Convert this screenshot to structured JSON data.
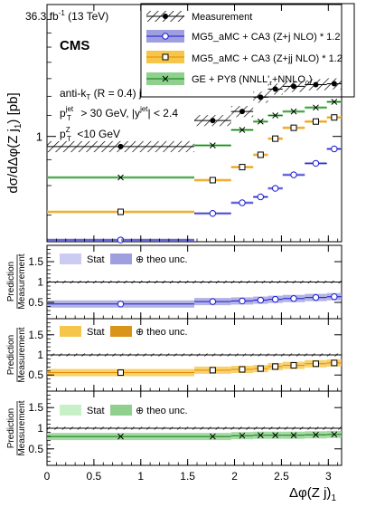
{
  "header": {
    "lumi": "36.3 fb",
    "lumi_sup": "-1",
    "energy": "(13 TeV)",
    "experiment": "CMS"
  },
  "selection": {
    "line1_a": "anti-k",
    "line1_sub": "T",
    "line1_b": " (R = 0.4) jets",
    "line2_a": "p",
    "line2_sup": "jet",
    "line2_sub": "T",
    "line2_b": " > 30 GeV, |y",
    "line2_sup2": "jet",
    "line2_c": "| < 2.4",
    "line3_a": "p",
    "line3_sup": "Z",
    "line3_sub": "T",
    "line3_b": " <10 GeV"
  },
  "legend": {
    "measurement": "Measurement",
    "mg5_j": "MG5_aMC + CA3 (Z+j NLO) * 1.2",
    "mg5_jj": "MG5_aMC + CA3 (Z+jj NLO) * 1.2",
    "ge": "GE + PY8 (NNLL'",
    "ge_sub": "τ",
    "ge_b": "+NNLO",
    "ge_sub2": "0",
    "ge_c": ")"
  },
  "ratio_legends": [
    {
      "stat": "Stat",
      "theo": "⊕ theo unc."
    },
    {
      "stat": "Stat",
      "theo": "⊕ theo unc."
    },
    {
      "stat": "Stat",
      "theo": "⊕ theo unc."
    }
  ],
  "colors": {
    "mg5_j": "#1a1ad6",
    "mg5_j_band": "#9f9fdf",
    "mg5_j_stat": "#ccccf2",
    "mg5_jj": "#e68a00",
    "mg5_jj_band": "#d9941a",
    "mg5_jj_stat": "#f6c64a",
    "ge": "#0a7a0a",
    "ge_band": "#8fd08f",
    "ge_stat": "#c8f0c8"
  },
  "chart_data": {
    "type": "line",
    "xlabel": "Δφ(Z j)",
    "xlabel_sub": "1",
    "ylabel": "dσ/dΔφ(Z j",
    "ylabel_sub": "1",
    "ylabel_unit": ") [pb]",
    "ratio_ylabel": [
      "Prediction",
      "Measurement"
    ],
    "xlim": [
      0,
      3.1416
    ],
    "xticks": [
      "0",
      "0.5",
      "1",
      "1.5",
      "2",
      "2.5",
      "3"
    ],
    "xtick_values": [
      0,
      0.5,
      1,
      1.5,
      2,
      2.5,
      3
    ],
    "ylog": true,
    "ylim": [
      0.62,
      1.82
    ],
    "yticks": [
      "1"
    ],
    "ytick_values": [
      1
    ],
    "ratio_ylim": [
      0.1,
      1.9
    ],
    "ratio_yticks": [
      "0.5",
      "1",
      "1.5"
    ],
    "ratio_ytick_values": [
      0.5,
      1,
      1.5
    ],
    "bin_edges": [
      0,
      1.5708,
      1.9635,
      2.1991,
      2.3562,
      2.5133,
      2.7489,
      2.9845,
      3.1416
    ],
    "series": [
      {
        "name": "Measurement",
        "values": [
          0.955,
          1.075,
          1.12,
          1.195,
          1.24,
          1.255,
          1.265,
          1.27
        ],
        "unc_rel": 0.025
      },
      {
        "name": "MG5_aMC + CA3 (Z+j NLO) * 1.2",
        "values": [
          0.625,
          0.705,
          0.74,
          0.76,
          0.79,
          0.84,
          0.885,
          0.945
        ]
      },
      {
        "name": "MG5_aMC + CA3 (Z+jj NLO) * 1.2",
        "values": [
          0.71,
          0.82,
          0.87,
          0.92,
          0.99,
          1.04,
          1.07,
          1.09
        ]
      },
      {
        "name": "GE + PY8 (NNLL'τ+NNLO0)",
        "values": [
          0.83,
          0.96,
          1.03,
          1.07,
          1.1,
          1.12,
          1.14,
          1.17
        ]
      }
    ],
    "ratios": [
      {
        "values": [
          0.46,
          0.52,
          0.535,
          0.555,
          0.575,
          0.595,
          0.62,
          0.64
        ]
      },
      {
        "values": [
          0.56,
          0.62,
          0.64,
          0.66,
          0.71,
          0.74,
          0.78,
          0.8
        ]
      },
      {
        "values": [
          0.8,
          0.8,
          0.82,
          0.83,
          0.83,
          0.83,
          0.84,
          0.85
        ]
      }
    ]
  }
}
